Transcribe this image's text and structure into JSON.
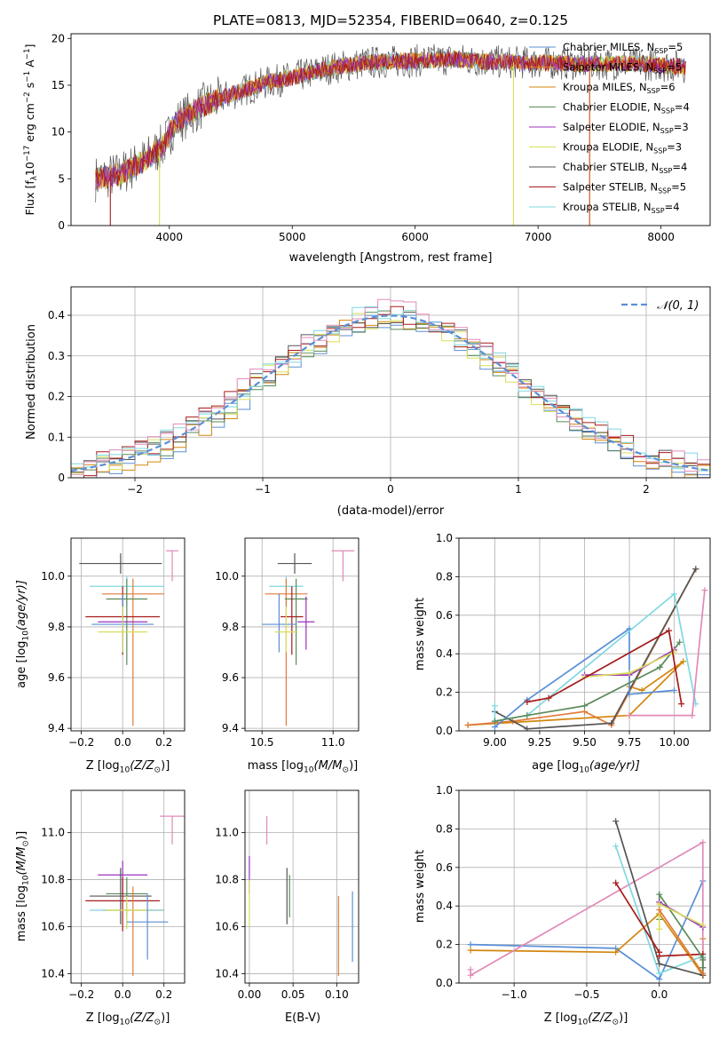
{
  "figure_title": "PLATE=0813, MJD=52354, FIBERID=0640, z=0.125",
  "colors": {
    "Chabrier MILES": "#5b8fd6",
    "Salpeter MILES": "#e07b39",
    "Kroupa MILES": "#d4860e",
    "Chabrier ELODIE": "#5a8a5a",
    "Salpeter ELODIE": "#9b30c0",
    "Kroupa ELODIE": "#d8df5a",
    "Chabrier STELIB": "#555555",
    "Salpeter STELIB": "#a61c1c",
    "Kroupa STELIB": "#7fd8e0",
    "normal": "#5b8fd6",
    "pink": "#e08ab8",
    "grid": "#b0b0b0"
  },
  "chart_data": [
    {
      "id": "spectrum",
      "type": "line",
      "xlabel": "wavelength [Angstrom, rest frame]",
      "ylabel": "Flux [f",
      "ylabel_parts": [
        "Flux [f",
        "λ",
        "10",
        "−17",
        " erg cm",
        "−2",
        " s",
        "−1",
        " A",
        "−1",
        "]"
      ],
      "xlim": [
        3200,
        8400
      ],
      "ylim": [
        0,
        20.5
      ],
      "xticks": [
        4000,
        5000,
        6000,
        7000,
        8000
      ],
      "yticks": [
        0,
        5,
        10,
        15,
        20
      ],
      "grid": false,
      "legend_position": "top-right",
      "continuum": {
        "x": [
          3400,
          3600,
          3800,
          3950,
          4050,
          4300,
          4500,
          4800,
          5000,
          5300,
          5600,
          6000,
          6300,
          6600,
          7000,
          7400,
          7800,
          8200
        ],
        "y": [
          5.0,
          5.5,
          7.0,
          8.5,
          11.0,
          13.0,
          14.0,
          15.3,
          15.8,
          16.8,
          17.4,
          17.6,
          17.8,
          17.5,
          17.4,
          17.3,
          17.3,
          17.0
        ]
      },
      "series": [
        {
          "name": "Chabrier MILES",
          "label_main": "Chabrier MILES, N",
          "label_sub": "SSP",
          "label_end": "=5"
        },
        {
          "name": "Salpeter MILES",
          "label_main": "Salpeter MILES, N",
          "label_sub": "SSP",
          "label_end": "=5"
        },
        {
          "name": "Kroupa MILES",
          "label_main": "Kroupa MILES, N",
          "label_sub": "SSP",
          "label_end": "=6"
        },
        {
          "name": "Chabrier ELODIE",
          "label_main": "Chabrier ELODIE, N",
          "label_sub": "SSP",
          "label_end": "=4"
        },
        {
          "name": "Salpeter ELODIE",
          "label_main": "Salpeter ELODIE, N",
          "label_sub": "SSP",
          "label_end": "=3"
        },
        {
          "name": "Kroupa ELODIE",
          "label_main": "Kroupa ELODIE, N",
          "label_sub": "SSP",
          "label_end": "=3"
        },
        {
          "name": "Chabrier STELIB",
          "label_main": "Chabrier STELIB, N",
          "label_sub": "SSP",
          "label_end": "=4"
        },
        {
          "name": "Salpeter STELIB",
          "label_main": "Salpeter STELIB, N",
          "label_sub": "SSP",
          "label_end": "=5"
        },
        {
          "name": "Kroupa STELIB",
          "label_main": "Kroupa STELIB, N",
          "label_sub": "SSP",
          "label_end": "=4"
        }
      ]
    },
    {
      "id": "residuals",
      "type": "histogram",
      "xlabel": "(data-model)/error",
      "ylabel": "Normed distribution",
      "xlim": [
        -2.5,
        2.5
      ],
      "ylim": [
        0,
        0.47
      ],
      "xticks": [
        -2,
        -1,
        0,
        1,
        2
      ],
      "yticks": [
        0.0,
        0.1,
        0.2,
        0.3,
        0.4
      ],
      "grid": true,
      "bin_width": 0.1,
      "legend_position": "top-right",
      "legend_label": "𝒩(0, 1)",
      "series": [
        "Chabrier MILES",
        "Kroupa MILES",
        "Chabrier ELODIE",
        "Kroupa ELODIE",
        "Chabrier STELIB",
        "Salpeter STELIB",
        "Kroupa STELIB",
        "pink"
      ]
    },
    {
      "id": "age_vs_Z",
      "type": "errorbar",
      "xlabel": "Z [log",
      "xlabel_parts": [
        "Z [log",
        "10",
        "(Z/Z",
        "⊙",
        ")]"
      ],
      "ylabel": "age  [log",
      "ylabel_parts": [
        "age  [log",
        "10",
        "(age/yr)]"
      ],
      "xlim": [
        -0.25,
        0.3
      ],
      "ylim": [
        9.39,
        10.15
      ],
      "xticks": [
        -0.2,
        0.0,
        0.2
      ],
      "xtick_labels": [
        "−0.2",
        "0.0",
        "0.2"
      ],
      "yticks": [
        9.4,
        9.6,
        9.8,
        10.0
      ],
      "yticks_labels": [
        "9.4",
        "9.6",
        "9.8",
        "10.0"
      ],
      "grid": true,
      "points": [
        {
          "c": "Chabrier STELIB",
          "x": -0.01,
          "xerr": 0.2,
          "y": 10.05,
          "yerr": 0.04,
          "yerr_hi": 0.04
        },
        {
          "c": "pink",
          "x": 0.24,
          "xerr": 0.03,
          "y": 10.1,
          "yerr": 0.12,
          "yerr_hi": 0.0
        },
        {
          "c": "Kroupa STELIB",
          "x": 0.02,
          "xerr": 0.18,
          "y": 9.96,
          "yerr": 0.08,
          "yerr_hi": 0.04
        },
        {
          "c": "Salpeter MILES",
          "x": 0.05,
          "xerr": 0.15,
          "y": 9.93,
          "yerr": 0.52,
          "yerr_hi": 0.06
        },
        {
          "c": "Chabrier ELODIE",
          "x": 0.02,
          "xerr": 0.1,
          "y": 9.91,
          "yerr": 0.26,
          "yerr_hi": 0.08
        },
        {
          "c": "Salpeter STELIB",
          "x": 0.0,
          "xerr": 0.18,
          "y": 9.84,
          "yerr": 0.15,
          "yerr_hi": 0.12
        },
        {
          "c": "Salpeter ELODIE",
          "x": 0.0,
          "xerr": 0.12,
          "y": 9.82,
          "yerr": 0.11,
          "yerr_hi": 0.1
        },
        {
          "c": "Chabrier MILES",
          "x": 0.0,
          "xerr": 0.15,
          "y": 9.81,
          "yerr": 0.11,
          "yerr_hi": 0.12
        },
        {
          "c": "Kroupa ELODIE",
          "x": 0.0,
          "xerr": 0.12,
          "y": 9.78,
          "yerr": 0.08,
          "yerr_hi": 0.1
        }
      ]
    },
    {
      "id": "age_vs_mass",
      "type": "errorbar",
      "xlabel": "mass [log",
      "xlabel_parts": [
        "mass [log",
        "10",
        "(M/M",
        "⊙",
        ")]"
      ],
      "xlim": [
        10.38,
        11.18
      ],
      "ylim": [
        9.39,
        10.15
      ],
      "xticks": [
        10.5,
        11.0
      ],
      "xtick_labels": [
        "10.5",
        "11.0"
      ],
      "yticks": [
        9.4,
        9.6,
        9.8,
        10.0
      ],
      "yticks_labels": [
        "9.4",
        "9.6",
        "9.8",
        "10.0"
      ],
      "grid": true,
      "points": [
        {
          "c": "Chabrier STELIB",
          "x": 10.73,
          "xerr": 0.12,
          "y": 10.05,
          "yerr": 0.04,
          "yerr_hi": 0.04
        },
        {
          "c": "pink",
          "x": 11.07,
          "xerr": 0.08,
          "y": 10.1,
          "yerr": 0.12,
          "yerr_hi": 0.0
        },
        {
          "c": "Kroupa STELIB",
          "x": 10.67,
          "xerr": 0.12,
          "y": 9.96,
          "yerr": 0.08,
          "yerr_hi": 0.04
        },
        {
          "c": "Salpeter MILES",
          "x": 10.67,
          "xerr": 0.15,
          "y": 9.93,
          "yerr": 0.52,
          "yerr_hi": 0.06
        },
        {
          "c": "Chabrier ELODIE",
          "x": 10.74,
          "xerr": 0.08,
          "y": 9.91,
          "yerr": 0.26,
          "yerr_hi": 0.08
        },
        {
          "c": "Salpeter STELIB",
          "x": 10.71,
          "xerr": 0.08,
          "y": 9.84,
          "yerr": 0.15,
          "yerr_hi": 0.12
        },
        {
          "c": "Salpeter ELODIE",
          "x": 10.81,
          "xerr": 0.06,
          "y": 9.82,
          "yerr": 0.11,
          "yerr_hi": 0.1
        },
        {
          "c": "Chabrier MILES",
          "x": 10.62,
          "xerr": 0.12,
          "y": 9.81,
          "yerr": 0.11,
          "yerr_hi": 0.12
        },
        {
          "c": "Kroupa ELODIE",
          "x": 10.67,
          "xerr": 0.08,
          "y": 9.78,
          "yerr": 0.08,
          "yerr_hi": 0.1
        }
      ]
    },
    {
      "id": "weight_vs_age",
      "type": "line",
      "xlabel": "age  [log",
      "xlabel_parts": [
        "age  [log",
        "10",
        "(age/yr)]"
      ],
      "ylabel": "mass weight",
      "xlim": [
        8.8,
        10.2
      ],
      "ylim": [
        0,
        1.0
      ],
      "xticks": [
        9.0,
        9.25,
        9.5,
        9.75,
        10.0
      ],
      "xtick_labels": [
        "9.00",
        "9.25",
        "9.50",
        "9.75",
        "10.00"
      ],
      "yticks": [
        0,
        0.2,
        0.4,
        0.6,
        0.8,
        1.0
      ],
      "ytick_labels": [
        "0.0",
        "0.2",
        "0.4",
        "0.6",
        "0.8",
        "1.0"
      ],
      "grid": true,
      "series": [
        {
          "c": "Kroupa MILES",
          "x": [
            8.85,
            9.75,
            10.05,
            9.82,
            9.75
          ],
          "y": [
            0.03,
            0.08,
            0.36,
            0.21,
            0.23
          ]
        },
        {
          "c": "Salpeter MILES",
          "x": [
            8.85,
            9.1,
            9.5,
            9.65,
            10.12
          ],
          "y": [
            0.03,
            0.05,
            0.1,
            0.03,
            0.84
          ]
        },
        {
          "c": "Chabrier STELIB",
          "x": [
            9.0,
            9.18,
            9.65,
            10.12
          ],
          "y": [
            0.1,
            0.01,
            0.04,
            0.84
          ]
        },
        {
          "c": "Chabrier MILES",
          "x": [
            9.0,
            9.18,
            9.75,
            9.75,
            10.0
          ],
          "y": [
            0.02,
            0.16,
            0.53,
            0.19,
            0.21
          ]
        },
        {
          "c": "Kroupa STELIB",
          "x": [
            9.0,
            9.0,
            9.18,
            10.0,
            10.12
          ],
          "y": [
            0.13,
            0.05,
            0.08,
            0.71,
            0.14
          ]
        },
        {
          "c": "Chabrier ELODIE",
          "x": [
            9.0,
            9.18,
            9.5,
            9.92,
            10.03
          ],
          "y": [
            0.05,
            0.08,
            0.13,
            0.33,
            0.46
          ]
        },
        {
          "c": "Salpeter ELODIE",
          "x": [
            9.5,
            9.75,
            10.0
          ],
          "y": [
            0.29,
            0.29,
            0.42
          ]
        },
        {
          "c": "Kroupa ELODIE",
          "x": [
            9.5,
            9.75,
            10.0
          ],
          "y": [
            0.28,
            0.3,
            0.41
          ]
        },
        {
          "c": "Salpeter STELIB",
          "x": [
            9.18,
            9.3,
            9.97,
            10.04
          ],
          "y": [
            0.15,
            0.17,
            0.52,
            0.14
          ]
        },
        {
          "c": "pink",
          "x": [
            9.75,
            10.1,
            10.17
          ],
          "y": [
            0.08,
            0.08,
            0.73
          ]
        }
      ]
    },
    {
      "id": "mass_vs_Z",
      "type": "errorbar",
      "xlabel": "Z [log",
      "xlabel_parts": [
        "Z [log",
        "10",
        "(Z/Z",
        "⊙",
        ")]"
      ],
      "ylabel": "mass [log",
      "ylabel_parts": [
        "mass [log",
        "10",
        "(M/M",
        "⊙",
        ")]"
      ],
      "xlim": [
        -0.25,
        0.3
      ],
      "ylim": [
        10.36,
        11.18
      ],
      "xticks": [
        -0.2,
        0.0,
        0.2
      ],
      "xtick_labels": [
        "−0.2",
        "0.0",
        "0.2"
      ],
      "yticks": [
        10.4,
        10.6,
        10.8,
        11.0
      ],
      "yticks_labels": [
        "10.4",
        "10.6",
        "10.8",
        "11.0"
      ],
      "grid": true,
      "points": [
        {
          "c": "pink",
          "x": 0.24,
          "xerr": 0.06,
          "y": 11.07,
          "yerr": 0.12,
          "yerr_hi": 0.0
        },
        {
          "c": "Salpeter ELODIE",
          "x": 0.0,
          "xerr": 0.12,
          "y": 10.82,
          "yerr": 0.08,
          "yerr_hi": 0.06
        },
        {
          "c": "Chabrier ELODIE",
          "x": 0.02,
          "xerr": 0.1,
          "y": 10.74,
          "yerr": 0.1,
          "yerr_hi": 0.07
        },
        {
          "c": "Chabrier STELIB",
          "x": -0.01,
          "xerr": 0.15,
          "y": 10.73,
          "yerr": 0.12,
          "yerr_hi": 0.12
        },
        {
          "c": "Salpeter STELIB",
          "x": 0.0,
          "xerr": 0.18,
          "y": 10.71,
          "yerr": 0.13,
          "yerr_hi": 0.1
        },
        {
          "c": "Salpeter MILES",
          "x": 0.05,
          "xerr": 0.15,
          "y": 10.67,
          "yerr": 0.28,
          "yerr_hi": 0.1
        },
        {
          "c": "Kroupa STELIB",
          "x": 0.02,
          "xerr": 0.18,
          "y": 10.67,
          "yerr": 0.08,
          "yerr_hi": 0.06
        },
        {
          "c": "Kroupa ELODIE",
          "x": 0.02,
          "xerr": 0.1,
          "y": 10.67,
          "yerr": 0.08,
          "yerr_hi": 0.06
        },
        {
          "c": "Chabrier MILES",
          "x": 0.12,
          "xerr": 0.1,
          "y": 10.62,
          "yerr": 0.16,
          "yerr_hi": 0.12
        }
      ]
    },
    {
      "id": "mass_vs_ebv",
      "type": "errorbar",
      "xlabel": "E(B-V)",
      "xlim": [
        -0.005,
        0.125
      ],
      "ylim": [
        10.36,
        11.18
      ],
      "xticks": [
        0.0,
        0.05,
        0.1
      ],
      "xtick_labels": [
        "0.00",
        "0.05",
        "0.10"
      ],
      "yticks": [
        10.4,
        10.6,
        10.8,
        11.0
      ],
      "yticks_labels": [
        "10.4",
        "10.6",
        "10.8",
        "11.0"
      ],
      "grid": true,
      "points": [
        {
          "c": "pink",
          "x": 0.02,
          "xerr": 0.0,
          "y": 11.07,
          "yerr": 0.12,
          "yerr_hi": 0.0
        },
        {
          "c": "Salpeter ELODIE",
          "x": 0.0,
          "xerr": 0.0,
          "y": 10.82,
          "yerr": 0.08,
          "yerr_hi": 0.08
        },
        {
          "c": "Kroupa ELODIE",
          "x": 0.0,
          "xerr": 0.0,
          "y": 10.72,
          "yerr": 0.12,
          "yerr_hi": 0.08
        },
        {
          "c": "Chabrier STELIB",
          "x": 0.043,
          "xerr": 0.0,
          "y": 10.73,
          "yerr": 0.12,
          "yerr_hi": 0.12
        },
        {
          "c": "Chabrier ELODIE",
          "x": 0.046,
          "xerr": 0.0,
          "y": 10.74,
          "yerr": 0.1,
          "yerr_hi": 0.08
        },
        {
          "c": "Salpeter MILES",
          "x": 0.102,
          "xerr": 0.0,
          "y": 10.6,
          "yerr": 0.21,
          "yerr_hi": 0.13
        },
        {
          "c": "Chabrier MILES",
          "x": 0.118,
          "xerr": 0.0,
          "y": 10.6,
          "yerr": 0.15,
          "yerr_hi": 0.15
        }
      ]
    },
    {
      "id": "weight_vs_Z",
      "type": "line",
      "xlabel": "Z [log",
      "xlabel_parts": [
        "Z [log",
        "10",
        "(Z/Z",
        "⊙",
        ")]"
      ],
      "ylabel": "mass weight",
      "xlim": [
        -1.38,
        0.35
      ],
      "ylim": [
        0,
        1.0
      ],
      "xticks": [
        -1.0,
        -0.5,
        0.0
      ],
      "xtick_labels": [
        "−1.0",
        "−0.5",
        "0.0"
      ],
      "yticks": [
        0,
        0.2,
        0.4,
        0.6,
        0.8,
        1.0
      ],
      "ytick_labels": [
        "0.0",
        "0.2",
        "0.4",
        "0.6",
        "0.8",
        "1.0"
      ],
      "grid": true,
      "series": [
        {
          "c": "Chabrier MILES",
          "x": [
            -1.3,
            -0.3,
            0.0,
            0.3
          ],
          "y": [
            0.2,
            0.18,
            0.02,
            0.53
          ]
        },
        {
          "c": "Kroupa MILES",
          "x": [
            -1.3,
            -0.3,
            0.0,
            0.3,
            0.3
          ],
          "y": [
            0.17,
            0.16,
            0.36,
            0.04,
            0.23
          ]
        },
        {
          "c": "pink",
          "x": [
            -1.3,
            -1.3,
            0.3,
            0.3
          ],
          "y": [
            0.07,
            0.04,
            0.73,
            0.08
          ]
        },
        {
          "c": "Kroupa STELIB",
          "x": [
            -0.3,
            0.0,
            0.3
          ],
          "y": [
            0.71,
            0.05,
            0.14
          ]
        },
        {
          "c": "Chabrier STELIB",
          "x": [
            -0.3,
            0.0,
            0.3,
            0.3
          ],
          "y": [
            0.84,
            0.1,
            0.04,
            0.12
          ]
        },
        {
          "c": "Salpeter STELIB",
          "x": [
            -0.3,
            0.0,
            0.0,
            0.3
          ],
          "y": [
            0.52,
            0.16,
            0.14,
            0.15
          ]
        },
        {
          "c": "Chabrier ELODIE",
          "x": [
            0.0,
            0.0,
            0.3,
            0.3
          ],
          "y": [
            0.33,
            0.46,
            0.13,
            0.08
          ]
        },
        {
          "c": "Salpeter ELODIE",
          "x": [
            0.0,
            0.3
          ],
          "y": [
            0.42,
            0.29
          ]
        },
        {
          "c": "Kroupa ELODIE",
          "x": [
            0.0,
            0.0,
            0.3
          ],
          "y": [
            0.28,
            0.41,
            0.3
          ]
        },
        {
          "c": "Salpeter MILES",
          "x": [
            0.0,
            0.3
          ],
          "y": [
            0.38,
            0.05
          ]
        }
      ]
    }
  ]
}
